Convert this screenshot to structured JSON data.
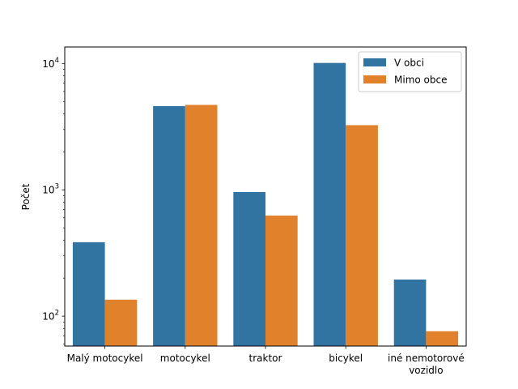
{
  "chart_data": {
    "type": "bar",
    "yscale": "log",
    "ylim": [
      58,
      13500
    ],
    "ylabel": "Počet",
    "xlabel": "",
    "categories": [
      [
        "Malý motocykel"
      ],
      [
        "motocykel"
      ],
      [
        "traktor"
      ],
      [
        "bicykel"
      ],
      [
        "iné nemotorové",
        "vozidlo"
      ]
    ],
    "series": [
      {
        "name": "V obci",
        "color": "#3274a1",
        "values": [
          385,
          4600,
          960,
          10100,
          195
        ]
      },
      {
        "name": "Mimo obce",
        "color": "#e1812c",
        "values": [
          135,
          4700,
          625,
          3250,
          76
        ]
      }
    ],
    "yticks": [
      {
        "value": 100,
        "base": "10",
        "exp": "2"
      },
      {
        "value": 1000,
        "base": "10",
        "exp": "3"
      },
      {
        "value": 10000,
        "base": "10",
        "exp": "4"
      }
    ],
    "legend": {
      "position": "top-right"
    },
    "grid": false
  }
}
